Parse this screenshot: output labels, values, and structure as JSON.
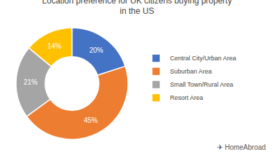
{
  "chart_data": {
    "type": "pie",
    "title": "Location preference for UK citizens buying property\nin the US",
    "categories": [
      "Central City/Urban Area",
      "Suburban Area",
      "Small Town/Rural Area",
      "Resort Area"
    ],
    "values": [
      20,
      45,
      21,
      14
    ],
    "value_labels": [
      "20%",
      "45%",
      "21%",
      "14%"
    ],
    "colors": [
      "#4472C4",
      "#ED7D31",
      "#A5A5A5",
      "#FFC000"
    ],
    "data_labels": true,
    "legend": "right",
    "annotations": [
      "✈",
      "HomeAbroad"
    ]
  }
}
